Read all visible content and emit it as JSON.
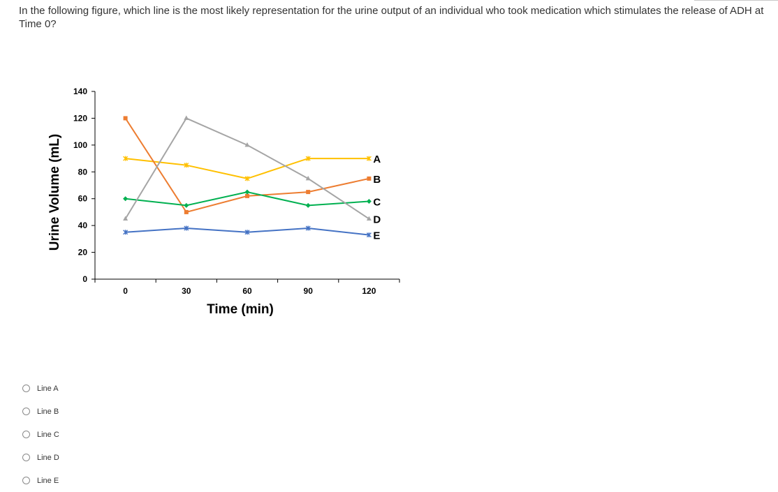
{
  "question": {
    "text": "In the following figure, which line is the most likely representation for the urine output of an individual who took medication which stimulates the release of ADH at Time 0?"
  },
  "chart_data": {
    "type": "line",
    "title": "",
    "xlabel": "Time (min)",
    "ylabel": "Urine Volume (mL)",
    "x": [
      0,
      30,
      60,
      90,
      120
    ],
    "xlim": [
      -15,
      135
    ],
    "ylim": [
      0,
      140
    ],
    "yticks": [
      0,
      20,
      40,
      60,
      80,
      100,
      120,
      140
    ],
    "grid": false,
    "legend": "end-of-line labels",
    "series": [
      {
        "name": "A",
        "color": "#FFC000",
        "marker": "star",
        "values": [
          90,
          85,
          75,
          90,
          90
        ]
      },
      {
        "name": "B",
        "color": "#ED7D31",
        "marker": "square",
        "values": [
          120,
          50,
          62,
          65,
          75
        ]
      },
      {
        "name": "C",
        "color": "#00B050",
        "marker": "diamond",
        "values": [
          60,
          55,
          65,
          55,
          58
        ]
      },
      {
        "name": "D",
        "color": "#A5A5A5",
        "marker": "triangle",
        "values": [
          45,
          120,
          100,
          75,
          45
        ]
      },
      {
        "name": "E",
        "color": "#4472C4",
        "marker": "star",
        "values": [
          35,
          38,
          35,
          38,
          33
        ]
      }
    ]
  },
  "options": [
    {
      "label": "Line A"
    },
    {
      "label": "Line B"
    },
    {
      "label": "Line C"
    },
    {
      "label": "Line D"
    },
    {
      "label": "Line E"
    }
  ]
}
